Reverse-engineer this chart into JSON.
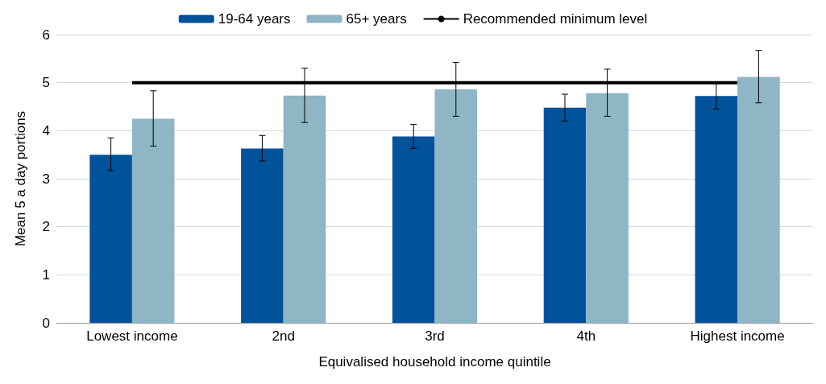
{
  "chart_data": {
    "type": "bar",
    "xlabel": "Equivalised household income quintile",
    "ylabel": "Mean 5 a day portions",
    "categories": [
      "Lowest income",
      "2nd",
      "3rd",
      "4th",
      "Highest income"
    ],
    "series": [
      {
        "name": "19-64 years",
        "color": "#00529b",
        "values": [
          3.5,
          3.63,
          3.88,
          4.48,
          4.72
        ],
        "errors": [
          [
            3.17,
            3.85
          ],
          [
            3.37,
            3.9
          ],
          [
            3.63,
            4.13
          ],
          [
            4.2,
            4.76
          ],
          [
            4.45,
            4.98
          ]
        ]
      },
      {
        "name": "65+ years",
        "color": "#8fb6c4",
        "values": [
          4.25,
          4.73,
          4.86,
          4.78,
          5.12
        ],
        "errors": [
          [
            3.68,
            4.83
          ],
          [
            4.17,
            5.3
          ],
          [
            4.3,
            5.42
          ],
          [
            4.3,
            5.28
          ],
          [
            4.58,
            5.67
          ]
        ]
      },
      {
        "name": "Recommended minimum level",
        "type": "line",
        "color": "#000000",
        "values": [
          5,
          5,
          5,
          5,
          5
        ],
        "marker": "none"
      }
    ],
    "ylim": [
      0,
      6
    ],
    "yticks": [
      0,
      1,
      2,
      3,
      4,
      5,
      6
    ],
    "grid": "y",
    "legend": "top"
  }
}
